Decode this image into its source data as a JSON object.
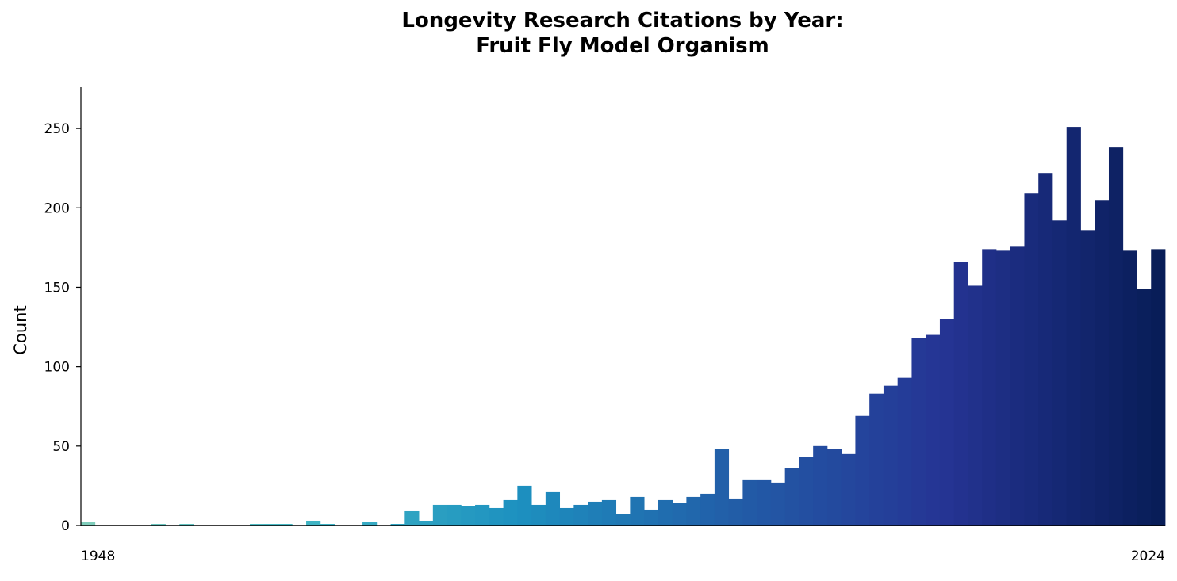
{
  "chart_data": {
    "type": "bar",
    "title_line1": "Longevity Research Citations by Year:",
    "title_line2": "Fruit Fly Model Organism",
    "xlabel": "",
    "ylabel": "Count",
    "ylim": [
      0,
      276
    ],
    "yticks": [
      0,
      50,
      100,
      150,
      200,
      250
    ],
    "x_tick_labels": [
      "1948",
      "2024"
    ],
    "grid": false,
    "legend": "none",
    "color_gradient": [
      "#7fcdbb",
      "#41b6c4",
      "#1d91c0",
      "#225ea8",
      "#253494",
      "#081d58"
    ],
    "categories": [
      1948,
      1949,
      1950,
      1951,
      1952,
      1953,
      1954,
      1955,
      1956,
      1957,
      1958,
      1959,
      1960,
      1961,
      1962,
      1963,
      1964,
      1965,
      1966,
      1967,
      1968,
      1969,
      1970,
      1971,
      1972,
      1973,
      1974,
      1975,
      1976,
      1977,
      1978,
      1979,
      1980,
      1981,
      1982,
      1983,
      1984,
      1985,
      1986,
      1987,
      1988,
      1989,
      1990,
      1991,
      1992,
      1993,
      1994,
      1995,
      1996,
      1997,
      1998,
      1999,
      2000,
      2001,
      2002,
      2003,
      2004,
      2005,
      2006,
      2007,
      2008,
      2009,
      2010,
      2011,
      2012,
      2013,
      2014,
      2015,
      2016,
      2017,
      2018,
      2019,
      2020,
      2021,
      2022,
      2023,
      2024
    ],
    "values": [
      2,
      0,
      0,
      0,
      0,
      1,
      0,
      1,
      0,
      0,
      0,
      0,
      1,
      1,
      1,
      0,
      3,
      1,
      0,
      0,
      2,
      0,
      1,
      9,
      3,
      13,
      13,
      12,
      13,
      11,
      16,
      25,
      13,
      21,
      11,
      13,
      15,
      16,
      7,
      18,
      10,
      16,
      14,
      18,
      20,
      48,
      17,
      29,
      29,
      27,
      36,
      43,
      50,
      48,
      45,
      69,
      83,
      88,
      93,
      118,
      120,
      130,
      166,
      151,
      174,
      173,
      176,
      209,
      222,
      192,
      251,
      186,
      205,
      238,
      173,
      149,
      174
    ]
  }
}
